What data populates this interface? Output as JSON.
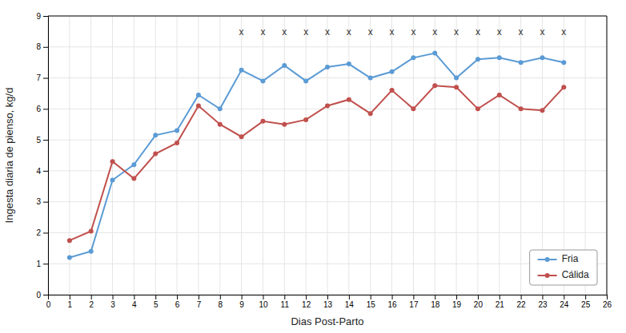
{
  "chart_data": {
    "type": "line",
    "x_label": "Dias Post-Parto",
    "y_label": "Ingesta diaria de pienso, kg/d",
    "x": [
      1,
      2,
      3,
      4,
      5,
      6,
      7,
      8,
      9,
      10,
      11,
      12,
      13,
      14,
      15,
      16,
      17,
      18,
      19,
      20,
      21,
      22,
      23,
      24
    ],
    "series": [
      {
        "name": "Fria",
        "color": "#5b9bd5",
        "marker": "circle",
        "values": [
          1.2,
          1.4,
          3.7,
          4.2,
          5.15,
          5.3,
          6.45,
          6.0,
          7.25,
          6.9,
          7.4,
          6.9,
          7.35,
          7.45,
          7.0,
          7.2,
          7.65,
          7.8,
          7.0,
          7.6,
          7.65,
          7.5,
          7.65,
          7.5
        ]
      },
      {
        "name": "Cálida",
        "color": "#c0504d",
        "marker": "circle",
        "values": [
          1.75,
          2.05,
          4.3,
          3.75,
          4.55,
          4.9,
          6.1,
          5.5,
          5.1,
          5.6,
          5.5,
          5.65,
          6.1,
          6.3,
          5.85,
          6.6,
          6.0,
          6.75,
          6.7,
          6.0,
          6.45,
          6.0,
          5.95,
          6.7
        ]
      }
    ],
    "annotations": [
      {
        "text": "x",
        "x": 9,
        "y": 8.45
      },
      {
        "text": "x",
        "x": 10,
        "y": 8.45
      },
      {
        "text": "x",
        "x": 11,
        "y": 8.45
      },
      {
        "text": "x",
        "x": 12,
        "y": 8.45
      },
      {
        "text": "x",
        "x": 13,
        "y": 8.45
      },
      {
        "text": "x",
        "x": 14,
        "y": 8.45
      },
      {
        "text": "x",
        "x": 15,
        "y": 8.45
      },
      {
        "text": "x",
        "x": 16,
        "y": 8.45
      },
      {
        "text": "x",
        "x": 17,
        "y": 8.45
      },
      {
        "text": "x",
        "x": 18,
        "y": 8.45
      },
      {
        "text": "x",
        "x": 19,
        "y": 8.45
      },
      {
        "text": "x",
        "x": 20,
        "y": 8.45
      },
      {
        "text": "x",
        "x": 21,
        "y": 8.45
      },
      {
        "text": "x",
        "x": 22,
        "y": 8.45
      },
      {
        "text": "x",
        "x": 23,
        "y": 8.45
      },
      {
        "text": "x",
        "x": 24,
        "y": 8.45
      }
    ],
    "xlim": [
      0,
      26
    ],
    "ylim": [
      0,
      9
    ],
    "xticks": [
      0,
      1,
      2,
      3,
      4,
      5,
      6,
      7,
      8,
      9,
      10,
      11,
      12,
      13,
      14,
      15,
      16,
      17,
      18,
      19,
      20,
      21,
      22,
      23,
      24,
      25,
      26
    ],
    "yticks": [
      0,
      1,
      2,
      3,
      4,
      5,
      6,
      7,
      8,
      9
    ],
    "grid": true,
    "legend": "lower-right"
  }
}
